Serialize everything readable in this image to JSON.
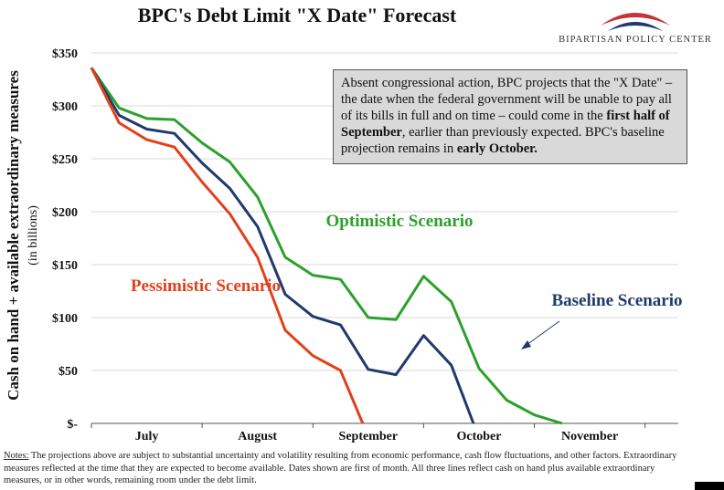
{
  "title": "BPC's Debt Limit \"X Date\" Forecast",
  "logo": {
    "name": "BIPARTISAN POLICY CENTER",
    "colors": {
      "red": "#c8333a",
      "blue": "#1f3a6e"
    }
  },
  "annotation": {
    "text_1": "Absent congressional action, BPC projects that the \"X Date\" – the date when the federal government will be unable to pay all of its bills in full and on time – could come in the ",
    "bold_1": "first half of September",
    "text_2": ", earlier than previously expected. BPC's baseline projection remains in ",
    "bold_2": "early October."
  },
  "notes": {
    "label": "Notes:",
    "text": " The projections above are subject to substantial uncertainty and volatility resulting from economic performance, cash flow fluctuations, and other factors. Extraordinary measures reflected at the time that they are expected to become available. Dates shown are first of month. All three lines reflect cash on hand plus available extraordinary measures, or in other words, remaining room under the debt limit."
  },
  "chart_data": {
    "type": "line",
    "ylabel": "Cash on hand + available extraordinary measures",
    "ylabel_sub": "(in billions)",
    "ylim": [
      0,
      350
    ],
    "yticks": [
      0,
      50,
      100,
      150,
      200,
      250,
      300,
      350
    ],
    "ytick_labels": [
      "$-",
      "$50",
      "$100",
      "$150",
      "$200",
      "$250",
      "$300",
      "$350"
    ],
    "xlim": [
      0,
      5.3
    ],
    "xticks": [
      0.5,
      1.5,
      2.5,
      3.5,
      4.5
    ],
    "xtick_labels": [
      "July",
      "August",
      "September",
      "October",
      "November"
    ],
    "grid": "horizontal",
    "series": [
      {
        "name": "Optimistic Scenario",
        "color": "#2ca02c",
        "x": [
          0.0,
          0.25,
          0.5,
          0.75,
          1.0,
          1.25,
          1.5,
          1.75,
          2.0,
          2.25,
          2.5,
          2.75,
          3.0,
          3.25,
          3.5,
          3.75,
          4.0,
          4.25,
          4.5,
          4.75
        ],
        "values": [
          336,
          298,
          288,
          287,
          265,
          247,
          214,
          157,
          140,
          136,
          100,
          98,
          139,
          115,
          52,
          22,
          8,
          0,
          null,
          null
        ]
      },
      {
        "name": "Baseline Scenario",
        "color": "#1f3a6e",
        "x": [
          0.0,
          0.25,
          0.5,
          0.75,
          1.0,
          1.25,
          1.5,
          1.75,
          2.0,
          2.25,
          2.5,
          2.75,
          3.0,
          3.25,
          3.45
        ],
        "values": [
          336,
          291,
          278,
          274,
          246,
          222,
          186,
          122,
          101,
          93,
          51,
          46,
          83,
          55,
          0
        ]
      },
      {
        "name": "Pessimistic Scenario",
        "color": "#e2401d",
        "x": [
          0.0,
          0.25,
          0.5,
          0.75,
          1.0,
          1.25,
          1.5,
          1.75,
          2.0,
          2.25,
          2.45
        ],
        "values": [
          336,
          284,
          268,
          261,
          228,
          198,
          157,
          88,
          64,
          50,
          0
        ]
      }
    ],
    "labels": [
      {
        "text": "Optimistic Scenario",
        "series": "Optimistic Scenario"
      },
      {
        "text": "Baseline Scenario",
        "series": "Baseline Scenario"
      },
      {
        "text": "Pessimistic Scenario",
        "series": "Pessimistic Scenario"
      }
    ]
  }
}
